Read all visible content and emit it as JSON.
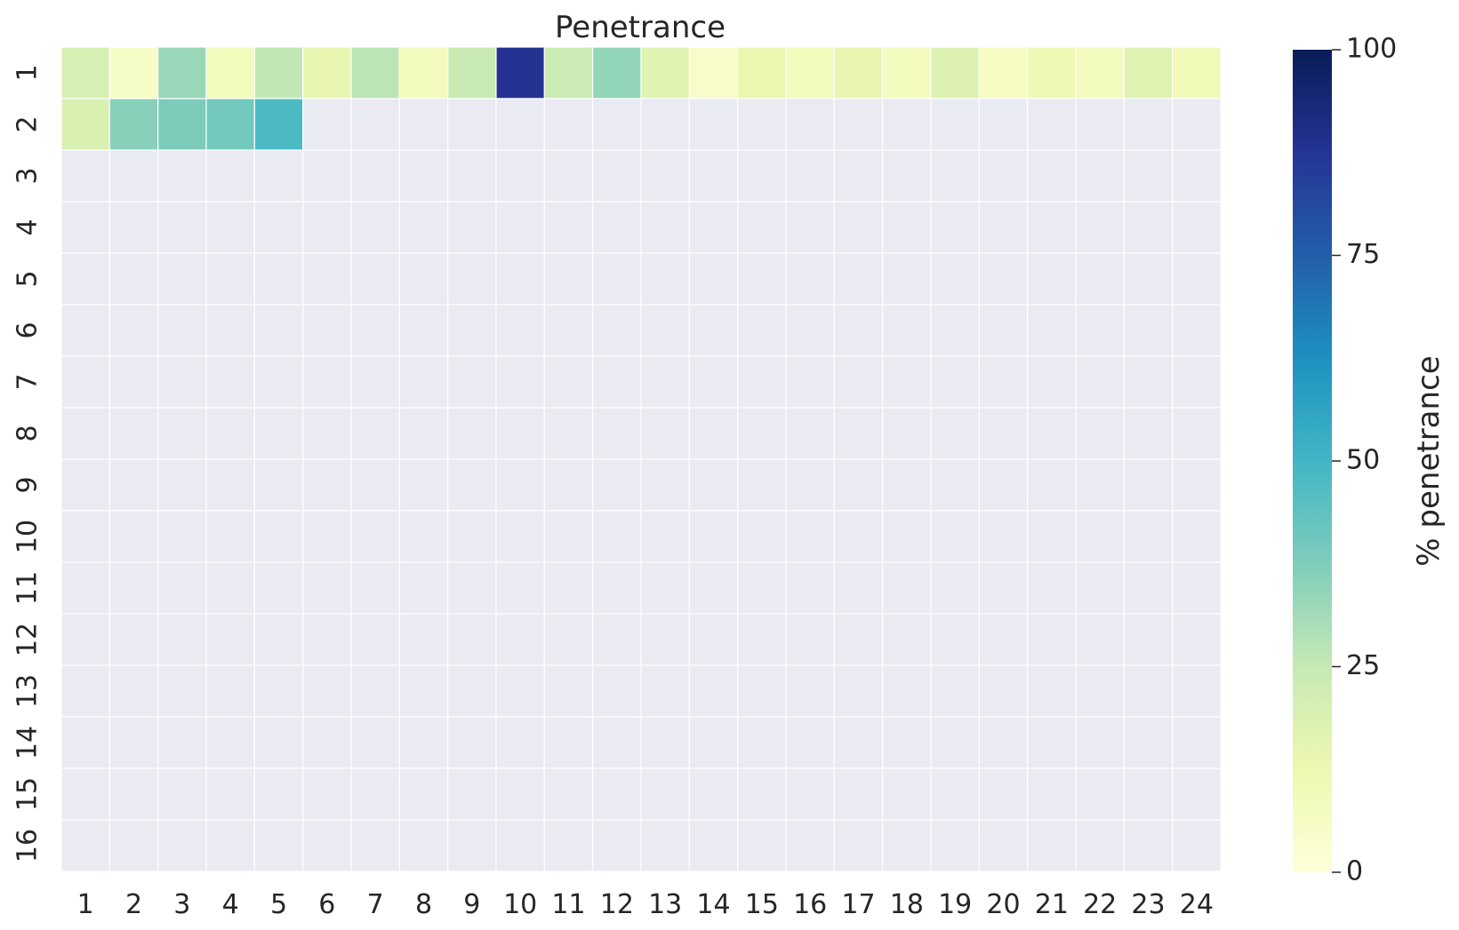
{
  "chart_data": {
    "type": "heatmap",
    "title": "Penetrance",
    "xlabel": "",
    "ylabel": "",
    "x_categories": [
      "1",
      "2",
      "3",
      "4",
      "5",
      "6",
      "7",
      "8",
      "9",
      "10",
      "11",
      "12",
      "13",
      "14",
      "15",
      "16",
      "17",
      "18",
      "19",
      "20",
      "21",
      "22",
      "23",
      "24"
    ],
    "y_categories": [
      "1",
      "2",
      "3",
      "4",
      "5",
      "6",
      "7",
      "8",
      "9",
      "10",
      "11",
      "12",
      "13",
      "14",
      "15",
      "16"
    ],
    "values": [
      [
        20,
        6,
        33,
        9,
        26,
        14,
        27,
        8,
        24,
        88,
        23,
        34,
        17,
        5,
        13,
        9,
        14,
        8,
        18,
        7,
        11,
        8,
        17,
        10
      ],
      [
        19,
        36,
        38,
        40,
        48,
        null,
        null,
        null,
        null,
        null,
        null,
        null,
        null,
        null,
        null,
        null,
        null,
        null,
        null,
        null,
        null,
        null,
        null,
        null
      ],
      [
        null,
        null,
        null,
        null,
        null,
        null,
        null,
        null,
        null,
        null,
        null,
        null,
        null,
        null,
        null,
        null,
        null,
        null,
        null,
        null,
        null,
        null,
        null,
        null
      ],
      [
        null,
        null,
        null,
        null,
        null,
        null,
        null,
        null,
        null,
        null,
        null,
        null,
        null,
        null,
        null,
        null,
        null,
        null,
        null,
        null,
        null,
        null,
        null,
        null
      ],
      [
        null,
        null,
        null,
        null,
        null,
        null,
        null,
        null,
        null,
        null,
        null,
        null,
        null,
        null,
        null,
        null,
        null,
        null,
        null,
        null,
        null,
        null,
        null,
        null
      ],
      [
        null,
        null,
        null,
        null,
        null,
        null,
        null,
        null,
        null,
        null,
        null,
        null,
        null,
        null,
        null,
        null,
        null,
        null,
        null,
        null,
        null,
        null,
        null,
        null
      ],
      [
        null,
        null,
        null,
        null,
        null,
        null,
        null,
        null,
        null,
        null,
        null,
        null,
        null,
        null,
        null,
        null,
        null,
        null,
        null,
        null,
        null,
        null,
        null,
        null
      ],
      [
        null,
        null,
        null,
        null,
        null,
        null,
        null,
        null,
        null,
        null,
        null,
        null,
        null,
        null,
        null,
        null,
        null,
        null,
        null,
        null,
        null,
        null,
        null,
        null
      ],
      [
        null,
        null,
        null,
        null,
        null,
        null,
        null,
        null,
        null,
        null,
        null,
        null,
        null,
        null,
        null,
        null,
        null,
        null,
        null,
        null,
        null,
        null,
        null,
        null
      ],
      [
        null,
        null,
        null,
        null,
        null,
        null,
        null,
        null,
        null,
        null,
        null,
        null,
        null,
        null,
        null,
        null,
        null,
        null,
        null,
        null,
        null,
        null,
        null,
        null
      ],
      [
        null,
        null,
        null,
        null,
        null,
        null,
        null,
        null,
        null,
        null,
        null,
        null,
        null,
        null,
        null,
        null,
        null,
        null,
        null,
        null,
        null,
        null,
        null,
        null
      ],
      [
        null,
        null,
        null,
        null,
        null,
        null,
        null,
        null,
        null,
        null,
        null,
        null,
        null,
        null,
        null,
        null,
        null,
        null,
        null,
        null,
        null,
        null,
        null,
        null
      ],
      [
        null,
        null,
        null,
        null,
        null,
        null,
        null,
        null,
        null,
        null,
        null,
        null,
        null,
        null,
        null,
        null,
        null,
        null,
        null,
        null,
        null,
        null,
        null,
        null
      ],
      [
        null,
        null,
        null,
        null,
        null,
        null,
        null,
        null,
        null,
        null,
        null,
        null,
        null,
        null,
        null,
        null,
        null,
        null,
        null,
        null,
        null,
        null,
        null,
        null
      ],
      [
        null,
        null,
        null,
        null,
        null,
        null,
        null,
        null,
        null,
        null,
        null,
        null,
        null,
        null,
        null,
        null,
        null,
        null,
        null,
        null,
        null,
        null,
        null,
        null
      ],
      [
        null,
        null,
        null,
        null,
        null,
        null,
        null,
        null,
        null,
        null,
        null,
        null,
        null,
        null,
        null,
        null,
        null,
        null,
        null,
        null,
        null,
        null,
        null,
        null
      ]
    ],
    "colorbar": {
      "label": "% penetrance",
      "range": [
        0,
        100
      ],
      "ticks": [
        0,
        25,
        50,
        75,
        100
      ],
      "colormap": "YlGnBu"
    },
    "colors": {
      "missing": "#eaeaf2",
      "grid_line": "#ffffff",
      "colormap_stops": [
        "#ffffd9",
        "#edf8b1",
        "#c7e9b4",
        "#7fcdbb",
        "#41b6c4",
        "#1d91c0",
        "#225ea8",
        "#253494",
        "#081d58"
      ]
    },
    "grid": false,
    "legend": "right"
  }
}
